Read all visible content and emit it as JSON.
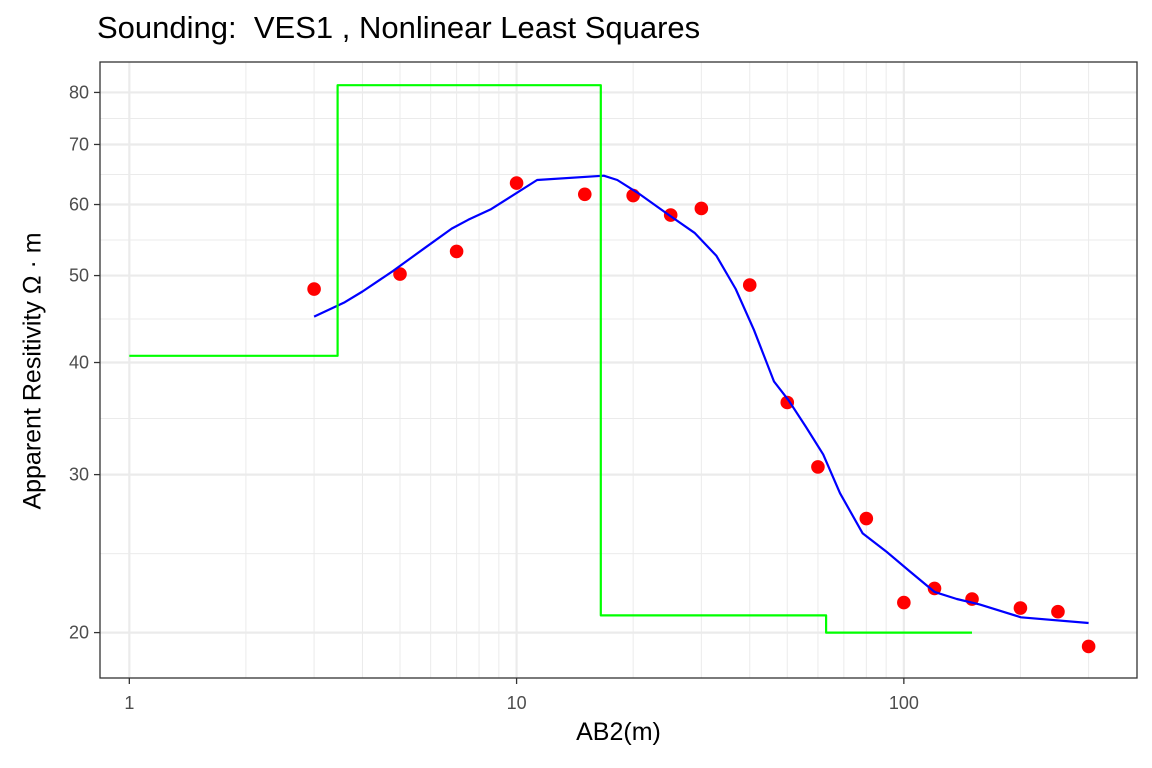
{
  "chart_data": {
    "type": "scatter",
    "title": "Sounding:  VES1 , Nonlinear Least Squares",
    "xlabel": "AB2(m)",
    "ylabel": "Apparent Resitivity Ω · m",
    "x_scale": "log10",
    "y_scale": "log10",
    "xlim": [
      0.84,
      400
    ],
    "ylim": [
      17.8,
      86.5
    ],
    "x_ticks": [
      1,
      10,
      100
    ],
    "x_tick_labels": [
      "1",
      "10",
      "100"
    ],
    "y_ticks": [
      20,
      30,
      40,
      50,
      60,
      70,
      80
    ],
    "y_tick_labels": [
      "20",
      "30",
      "40",
      "50",
      "60",
      "70",
      "80"
    ],
    "grid": true,
    "series": [
      {
        "kind": "points",
        "color": "#ff0000",
        "x": [
          3,
          5,
          7,
          10,
          15,
          20,
          25,
          30,
          40,
          50,
          60,
          80,
          100,
          120,
          150,
          200,
          250,
          300
        ],
        "y": [
          48.3,
          50.2,
          53.2,
          63.4,
          61.6,
          61.4,
          58.4,
          59.4,
          48.8,
          36.1,
          30.6,
          26.8,
          21.6,
          22.4,
          21.8,
          21.3,
          21.1,
          19.3
        ]
      },
      {
        "kind": "fitted-curve",
        "color": "#0000ff",
        "x": [
          3,
          3.6,
          4,
          4.8,
          5.8,
          6.8,
          7.5,
          8.6,
          11.3,
          16.8,
          18.2,
          20.7,
          24.6,
          28.8,
          32.8,
          36.8,
          41.0,
          46.2,
          50.4,
          55.9,
          61.9,
          68.4,
          78.3,
          90.3,
          103.6,
          120.0,
          137.0,
          156.9,
          200.6,
          300.0
        ],
        "y": [
          45.0,
          46.7,
          48.0,
          50.6,
          53.7,
          56.4,
          57.7,
          59.3,
          63.9,
          64.6,
          63.9,
          61.7,
          58.5,
          55.8,
          52.6,
          48.3,
          43.5,
          38.1,
          36.3,
          33.9,
          31.6,
          28.6,
          25.8,
          24.6,
          23.4,
          22.2,
          21.8,
          21.5,
          20.8,
          20.5
        ]
      },
      {
        "kind": "layer-model",
        "color": "#00ff00",
        "x": [
          1,
          3.45,
          3.45,
          16.5,
          16.5,
          63,
          63,
          150
        ],
        "y": [
          40.7,
          40.7,
          81.5,
          81.5,
          20.9,
          20.9,
          20.0,
          20.0
        ]
      }
    ]
  }
}
